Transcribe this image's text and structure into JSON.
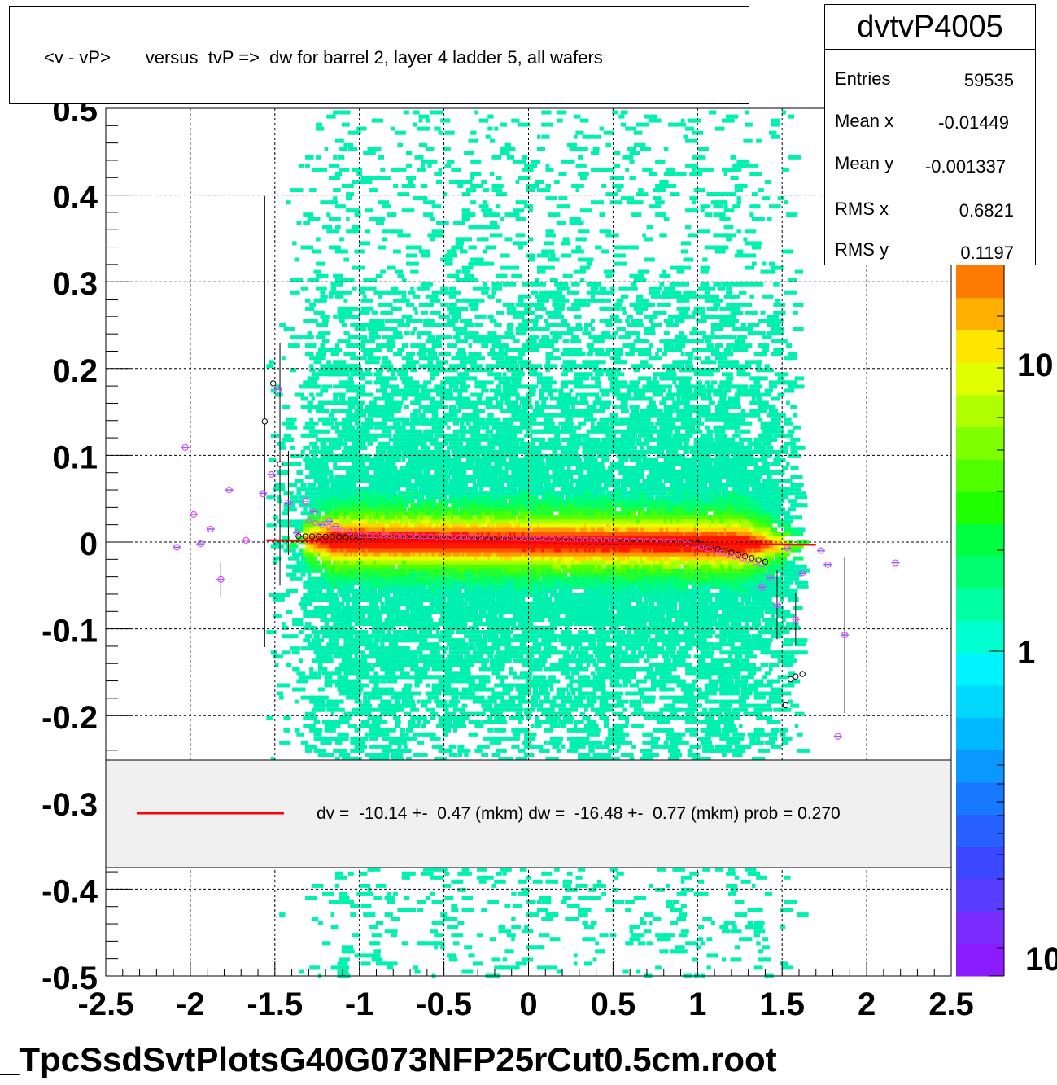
{
  "chart_data": {
    "type": "heatmap",
    "title": "<v - vP>       versus  tvP =>  dw for barrel 2, layer 4 ladder 5, all wafers",
    "xlabel": "",
    "ylabel": "",
    "xlim": [
      -2.5,
      2.5
    ],
    "ylim": [
      -0.5,
      0.5
    ],
    "x_ticks": [
      "-2.5",
      "-2",
      "-1.5",
      "-1",
      "-0.5",
      "0",
      "0.5",
      "1",
      "1.5",
      "2",
      "2.5"
    ],
    "y_ticks": [
      "-0.5",
      "-0.4",
      "-0.3",
      "-0.2",
      "-0.1",
      "0",
      "0.1",
      "0.2",
      "0.3",
      "0.4",
      "0.5"
    ],
    "grid": true,
    "colorbar": {
      "scale": "log",
      "labels": [
        "10",
        "1",
        "10"
      ],
      "colors": [
        "#7f00ff",
        "#3030ff",
        "#0080ff",
        "#00ffff",
        "#00ffaa",
        "#00ff00",
        "#88ff00",
        "#ffff00",
        "#ffaa00",
        "#ff0000"
      ]
    },
    "fit_line": {
      "x": [
        -1.55,
        1.7
      ],
      "y": [
        0.002,
        -0.003
      ],
      "color": "#ff0000"
    },
    "profile_points": [
      {
        "x": -2.08,
        "y": -0.006
      },
      {
        "x": -2.03,
        "y": 0.109
      },
      {
        "x": -1.98,
        "y": 0.032
      },
      {
        "x": -1.94,
        "y": -0.002
      },
      {
        "x": -1.88,
        "y": 0.015
      },
      {
        "x": -1.82,
        "y": -0.043
      },
      {
        "x": -1.77,
        "y": 0.06
      },
      {
        "x": -1.67,
        "y": 0.002
      },
      {
        "x": -1.57,
        "y": 0.056
      },
      {
        "x": -1.52,
        "y": 0.078
      },
      {
        "x": -1.48,
        "y": 0.176
      },
      {
        "x": -1.42,
        "y": 0.045
      },
      {
        "x": -1.37,
        "y": 0.011
      },
      {
        "x": -1.32,
        "y": 0.047
      },
      {
        "x": -1.27,
        "y": 0.035
      },
      {
        "x": -1.22,
        "y": 0.02
      },
      {
        "x": -1.18,
        "y": 0.024
      },
      {
        "x": -1.14,
        "y": 0.018
      },
      {
        "x": 1.38,
        "y": -0.052
      },
      {
        "x": 1.43,
        "y": -0.041
      },
      {
        "x": 1.47,
        "y": -0.072
      },
      {
        "x": 1.53,
        "y": -0.007
      },
      {
        "x": 1.58,
        "y": -0.089
      },
      {
        "x": 1.62,
        "y": -0.036
      },
      {
        "x": 1.73,
        "y": -0.01
      },
      {
        "x": 1.77,
        "y": -0.026
      },
      {
        "x": 1.83,
        "y": -0.224
      },
      {
        "x": 1.87,
        "y": -0.107
      },
      {
        "x": 2.17,
        "y": -0.024
      }
    ],
    "legend": {
      "entries": [
        "dv =  -10.14 +-  0.47 (mkm) dw =  -16.48 +-  0.77 (mkm) prob = 0.270"
      ],
      "placement": "bottom"
    }
  },
  "stats": {
    "name": "dvtvP4005",
    "rows": [
      {
        "key": "Entries",
        "value": "59535"
      },
      {
        "key": "Mean x",
        "value": "-0.01449"
      },
      {
        "key": "Mean y",
        "value": "-0.001337"
      },
      {
        "key": "RMS x",
        "value": "0.6821"
      },
      {
        "key": "RMS y",
        "value": "0.1197"
      }
    ]
  },
  "footer": "_TpcSsdSvtPlotsG40G073NFP25rCut0.5cm.root"
}
